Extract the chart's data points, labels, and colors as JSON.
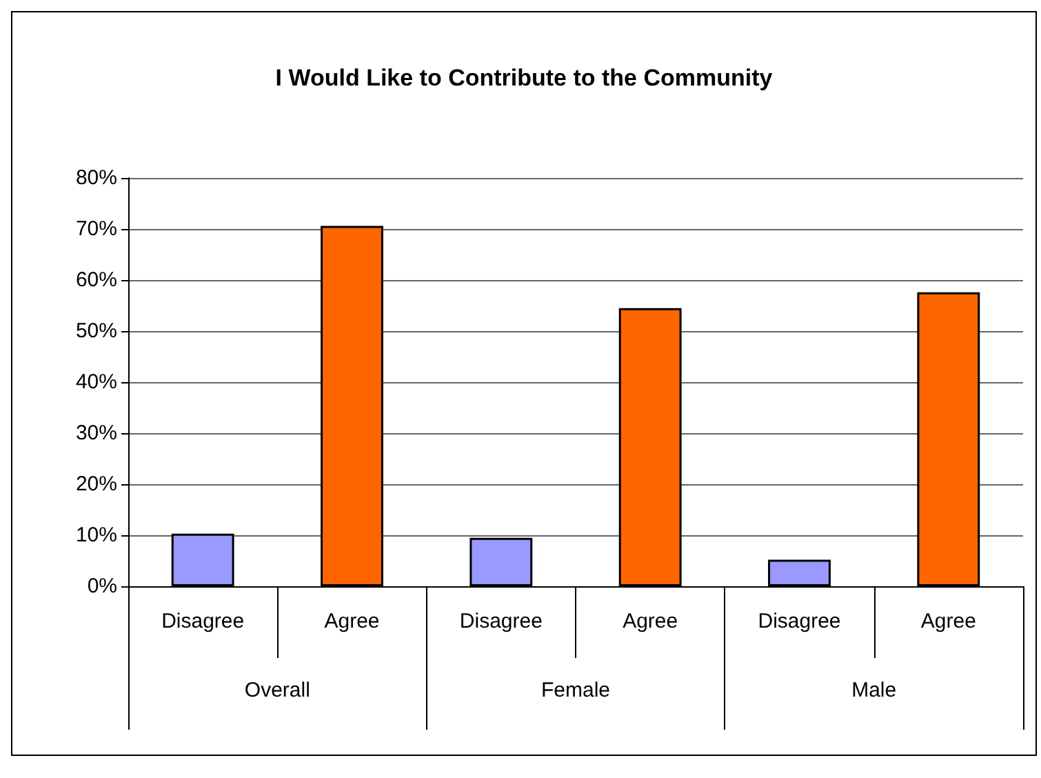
{
  "chart_data": {
    "type": "bar",
    "title": "I Would Like to Contribute to the Community",
    "categories": [
      "Disagree",
      "Agree",
      "Disagree",
      "Agree",
      "Disagree",
      "Agree"
    ],
    "values": [
      0.103,
      0.706,
      0.095,
      0.545,
      0.052,
      0.576
    ],
    "colors": [
      "#9999ff",
      "#ff6600",
      "#9999ff",
      "#ff6600",
      "#9999ff",
      "#ff6600"
    ],
    "annotations": [
      "Overall",
      "Female",
      "Male"
    ],
    "ylim": [
      0,
      0.8
    ],
    "yticks": [
      {
        "value": 0,
        "label": "0%"
      },
      {
        "value": 0.1,
        "label": "10%"
      },
      {
        "value": 0.2,
        "label": "20%"
      },
      {
        "value": 0.3,
        "label": "30%"
      },
      {
        "value": 0.4,
        "label": "40%"
      },
      {
        "value": 0.5,
        "label": "50%"
      },
      {
        "value": 0.6,
        "label": "60%"
      },
      {
        "value": 0.7,
        "label": "70%"
      },
      {
        "value": 0.8,
        "label": "80%"
      }
    ],
    "grid": "y"
  }
}
